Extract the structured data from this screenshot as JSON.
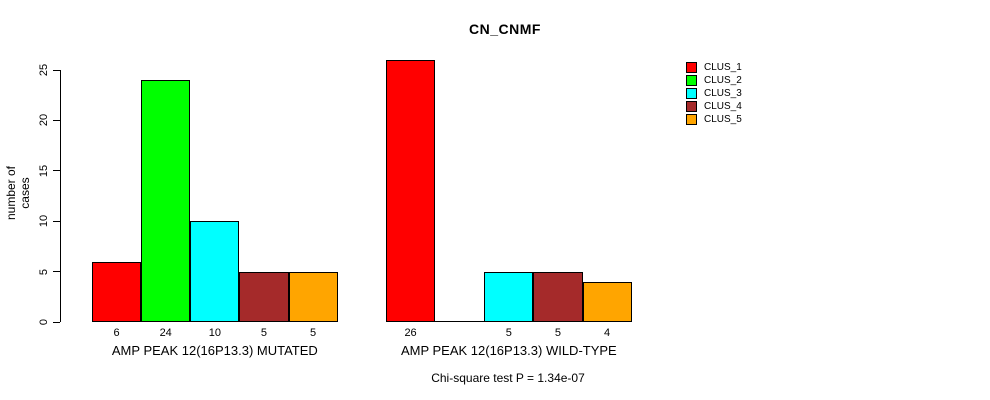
{
  "chart_data": {
    "type": "bar",
    "title": "CN_CNMF",
    "ylabel": "number of cases",
    "xlabel": "",
    "ylim": [
      0,
      25
    ],
    "yticks": [
      0,
      5,
      10,
      15,
      20,
      25
    ],
    "grid": false,
    "legend_position": "top-right",
    "background": "#ffffff",
    "series_names": [
      "CLUS_1",
      "CLUS_2",
      "CLUS_3",
      "CLUS_4",
      "CLUS_5"
    ],
    "colors": [
      "#FF0000",
      "#00FF00",
      "#00FFFF",
      "#A52A2A",
      "#FFA500"
    ],
    "categories": [
      "AMP PEAK 12(16P13.3) MUTATED",
      "AMP PEAK 12(16P13.3) WILD-TYPE"
    ],
    "series": [
      {
        "name": "CLUS_1",
        "values": [
          6,
          26
        ]
      },
      {
        "name": "CLUS_2",
        "values": [
          24,
          0
        ]
      },
      {
        "name": "CLUS_3",
        "values": [
          10,
          5
        ]
      },
      {
        "name": "CLUS_4",
        "values": [
          5,
          5
        ]
      },
      {
        "name": "CLUS_5",
        "values": [
          5,
          4
        ]
      }
    ],
    "bar_value_labels": {
      "AMP PEAK 12(16P13.3) MUTATED": [
        "6",
        "24",
        "10",
        "5",
        "5"
      ],
      "AMP PEAK 12(16P13.3) WILD-TYPE": [
        "26",
        "",
        "5",
        "5",
        "4"
      ]
    },
    "annotation": "Chi-square test P = 1.34e-07"
  }
}
